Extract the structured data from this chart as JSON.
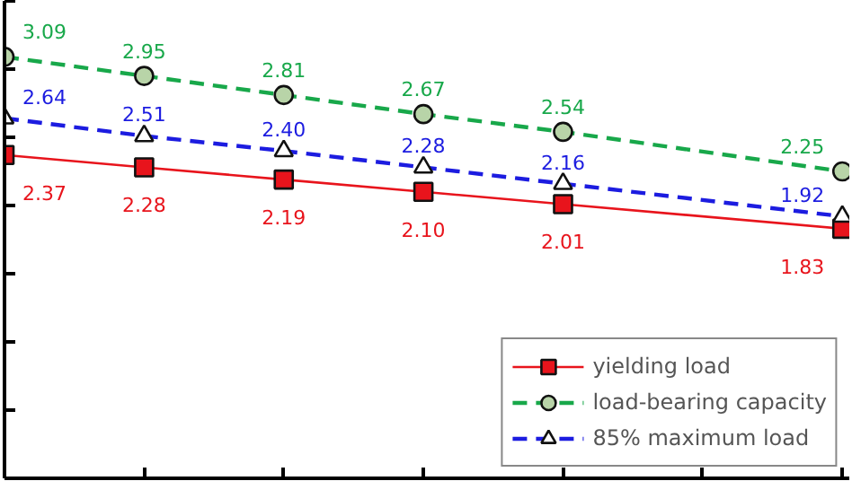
{
  "chart_data": {
    "type": "line",
    "categories": [
      null,
      null,
      null,
      null,
      null,
      null,
      null
    ],
    "ylim": [
      0,
      3.5
    ],
    "yticks": [
      {
        "value": 0,
        "label": null
      },
      {
        "value": 0.5,
        "label": null
      },
      {
        "value": 1,
        "label": null
      },
      {
        "value": 1.5,
        "label": null
      },
      {
        "value": 2,
        "label": null
      },
      {
        "value": 2.5,
        "label": null
      },
      {
        "value": 3,
        "label": null
      },
      {
        "value": 3.5,
        "label": null
      }
    ],
    "legend": "bottom right",
    "grid": false,
    "series": [
      {
        "name": "yielding load",
        "color": "#e8141c",
        "values": [
          2.37,
          2.28,
          2.19,
          2.1,
          2.01,
          null,
          1.83
        ],
        "value_labels": [
          "2.37",
          "2.28",
          "2.19",
          "2.10",
          "2.01",
          null,
          "1.83"
        ],
        "marker": "square",
        "line_style": "solid"
      },
      {
        "name": "load-bearing capacity",
        "color": "#18a84a",
        "values": [
          3.09,
          2.95,
          2.81,
          2.67,
          2.54,
          null,
          2.25
        ],
        "value_labels": [
          "3.09",
          "2.95",
          "2.81",
          "2.67",
          "2.54",
          null,
          "2.25"
        ],
        "marker": "circle",
        "line_style": "dashed"
      },
      {
        "name": "85% maximum load",
        "color": "#1c1ce0",
        "values": [
          2.64,
          2.51,
          2.4,
          2.28,
          2.16,
          null,
          1.92
        ],
        "value_labels": [
          "2.64",
          "2.51",
          "2.40",
          "2.28",
          "2.16",
          null,
          "1.92"
        ],
        "marker": "triangle",
        "line_style": "dashed"
      }
    ]
  }
}
